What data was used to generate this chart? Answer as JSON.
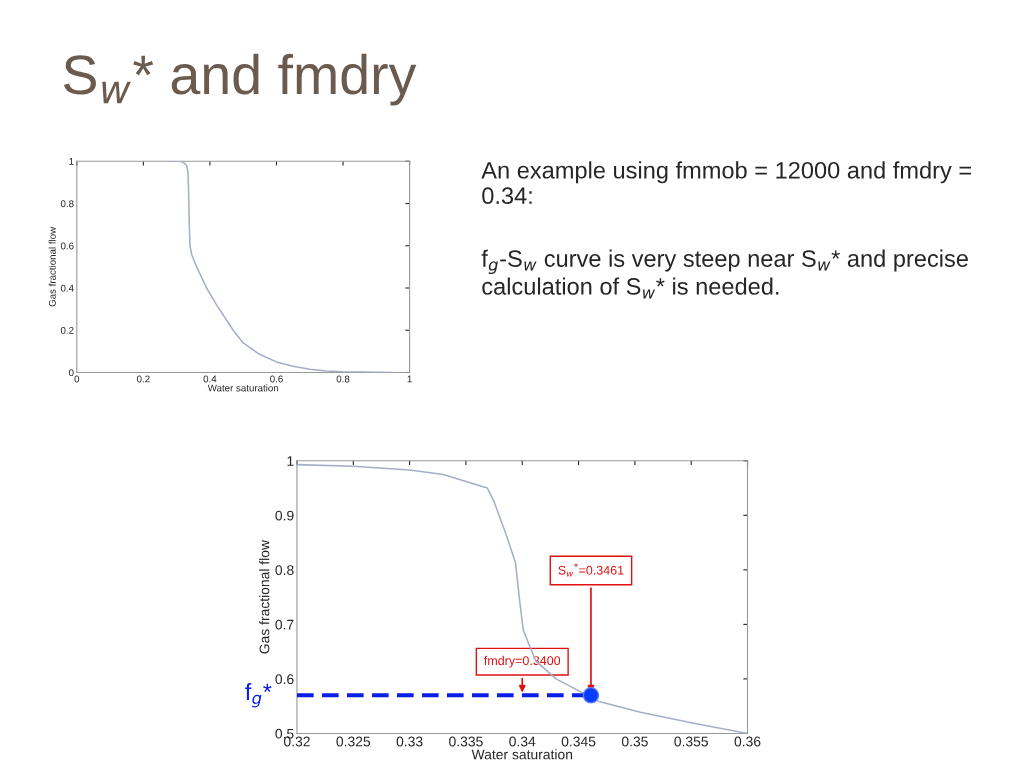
{
  "chart_data": [
    {
      "type": "other",
      "title": "S$_{w}$* and fmdry",
      "annotations": [
        "An example using fmmob = 12000 and fmdry = 0.34:",
        "f$_{g}$-S$_{w}$ curve is very steep near S$_{w}$* and precise calculation of S$_{w}$* is needed."
      ]
    },
    {
      "type": "line",
      "xlabel": "Water saturation",
      "ylabel": "Gas fractional flow",
      "xlim": [
        0,
        1
      ],
      "ylim": [
        0,
        1
      ],
      "xticks": [
        0,
        0.2,
        0.4,
        0.6,
        0.8,
        1
      ],
      "yticks": [
        0,
        0.2,
        0.4,
        0.6,
        0.8,
        1
      ],
      "series": [
        {
          "color": "#a4aec8",
          "x": [
            0.28,
            0.31,
            0.32,
            0.33,
            0.334,
            0.336,
            0.338,
            0.34,
            0.345,
            0.36,
            0.39,
            0.42,
            0.47,
            0.5,
            0.55,
            0.6,
            0.65,
            0.7,
            0.75,
            0.8,
            0.9,
            0.95
          ],
          "values": [
            1,
            1,
            0.995,
            0.98,
            0.95,
            0.85,
            0.7,
            0.6,
            0.56,
            0.5,
            0.4,
            0.32,
            0.2,
            0.14,
            0.085,
            0.05,
            0.03,
            0.015,
            0.007,
            0.003,
            0.001,
            0
          ]
        }
      ]
    },
    {
      "type": "line",
      "xlabel": "Water saturation",
      "ylabel": "Gas fractional flow",
      "xlim": [
        0.32,
        0.36
      ],
      "ylim": [
        0.5,
        1
      ],
      "xticks": [
        0.32,
        0.325,
        0.33,
        0.335,
        0.34,
        0.345,
        0.35,
        0.355,
        0.36
      ],
      "yticks": [
        0.5,
        0.6,
        0.7,
        0.8,
        0.9,
        1
      ],
      "annotations": [
        {
          "text": "fmdry=0.3400",
          "x": 0.34,
          "y": 0.57
        },
        {
          "text": "S$_{w}$$^{*}$=0.3461",
          "x": 0.3461,
          "y": 0.57
        }
      ],
      "series": [
        {
          "color": "#a4aec8",
          "x": [
            0.32,
            0.325,
            0.33,
            0.333,
            0.335,
            0.3369,
            0.3375,
            0.3386,
            0.3394,
            0.3398,
            0.3401,
            0.3407,
            0.3412,
            0.343,
            0.3469,
            0.3505,
            0.3549,
            0.36
          ],
          "values": [
            0.993,
            0.99,
            0.983,
            0.975,
            0.962,
            0.95,
            0.925,
            0.863,
            0.813,
            0.738,
            0.689,
            0.658,
            0.633,
            0.6,
            0.558,
            0.539,
            0.52,
            0.5
          ]
        },
        {
          "name": "f$_{g}$*",
          "color": "#0a1ee6",
          "line_style": "dashed",
          "x": [
            0.32,
            0.3461
          ],
          "values": [
            0.57,
            0.57
          ]
        },
        {
          "type": "scatter",
          "color": "#0a3cff",
          "marker": "circle",
          "x": [
            0.3461
          ],
          "values": [
            0.57
          ]
        }
      ]
    }
  ]
}
